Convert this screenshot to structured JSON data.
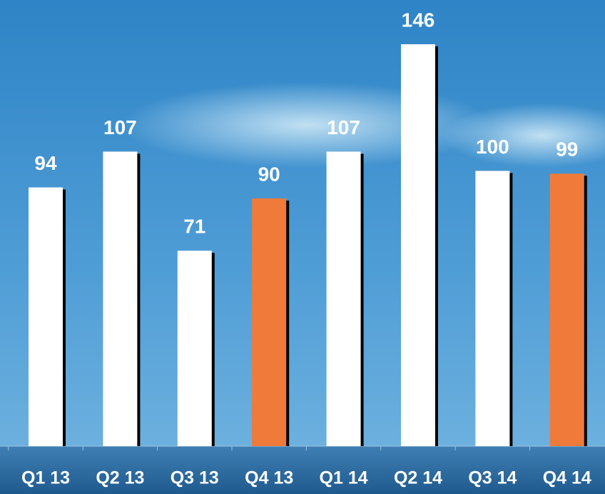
{
  "chart_data": {
    "type": "bar",
    "categories": [
      "Q1 13",
      "Q2 13",
      "Q3 13",
      "Q4 13",
      "Q1 14",
      "Q2 14",
      "Q3 14",
      "Q4 14"
    ],
    "values": [
      94,
      107,
      71,
      90,
      107,
      146,
      100,
      99
    ],
    "colors": [
      "#ffffff",
      "#ffffff",
      "#ffffff",
      "#ef7a3a",
      "#ffffff",
      "#ffffff",
      "#ffffff",
      "#ef7a3a"
    ]
  }
}
